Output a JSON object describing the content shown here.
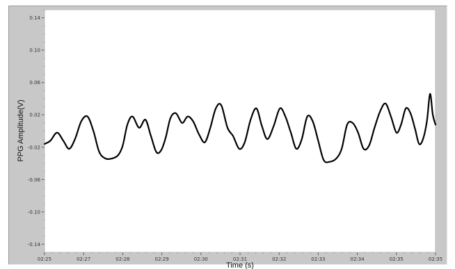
{
  "chart_data": {
    "type": "line",
    "title": "",
    "xlabel": "Time (s)",
    "ylabel": "PPG Amplitude(V)",
    "xlim": [
      "02:25",
      "02:35"
    ],
    "ylim": [
      -0.15,
      0.15
    ],
    "x_ticks": [
      "02:25",
      "02:27",
      "02:28",
      "02:29",
      "02:30",
      "02:31",
      "02:32",
      "02:33",
      "02:34",
      "02:35",
      "02:35"
    ],
    "y_ticks": [
      "0.14",
      "0.10",
      "0.06",
      "0.02",
      "-0.02",
      "-0.06",
      "-0.10",
      "-0.14"
    ],
    "y_tick_values": [
      0.14,
      0.1,
      0.06,
      0.02,
      -0.02,
      -0.06,
      -0.1,
      -0.14
    ],
    "grid": false,
    "series": [
      {
        "color": "#000000",
        "t_seconds": [
          0.0,
          0.15,
          0.32,
          0.48,
          0.63,
          0.78,
          0.94,
          1.1,
          1.25,
          1.4,
          1.56,
          1.72,
          1.88,
          2.0,
          2.12,
          2.25,
          2.42,
          2.58,
          2.72,
          2.86,
          2.98,
          3.1,
          3.22,
          3.36,
          3.52,
          3.66,
          3.8,
          3.95,
          4.1,
          4.24,
          4.38,
          4.52,
          4.68,
          4.82,
          4.98,
          5.12,
          5.27,
          5.42,
          5.56,
          5.7,
          5.86,
          6.02,
          6.16,
          6.3,
          6.44,
          6.58,
          6.72,
          6.86,
          7.0,
          7.14,
          7.3,
          7.46,
          7.6,
          7.74,
          7.88,
          8.02,
          8.16,
          8.3,
          8.44,
          8.58,
          8.72,
          8.86,
          9.0,
          9.12,
          9.24,
          9.36,
          9.48,
          9.58,
          9.68,
          9.78,
          9.86,
          9.93,
          10.0
        ],
        "values": [
          -0.016,
          -0.012,
          -0.002,
          -0.012,
          -0.022,
          -0.01,
          0.012,
          0.018,
          0.0,
          -0.026,
          -0.034,
          -0.034,
          -0.03,
          -0.018,
          0.008,
          0.018,
          0.004,
          0.014,
          -0.006,
          -0.026,
          -0.024,
          -0.008,
          0.016,
          0.022,
          0.01,
          0.018,
          0.012,
          -0.004,
          -0.014,
          0.004,
          0.028,
          0.032,
          0.004,
          -0.006,
          -0.022,
          -0.014,
          0.014,
          0.028,
          0.006,
          -0.01,
          0.006,
          0.028,
          0.018,
          -0.002,
          -0.022,
          -0.01,
          0.018,
          0.012,
          -0.012,
          -0.036,
          -0.038,
          -0.034,
          -0.022,
          0.008,
          0.01,
          -0.002,
          -0.022,
          -0.018,
          0.004,
          0.024,
          0.034,
          0.018,
          -0.002,
          0.008,
          0.028,
          0.022,
          0.002,
          -0.016,
          -0.01,
          0.012,
          0.046,
          0.02,
          0.008
        ]
      }
    ]
  }
}
